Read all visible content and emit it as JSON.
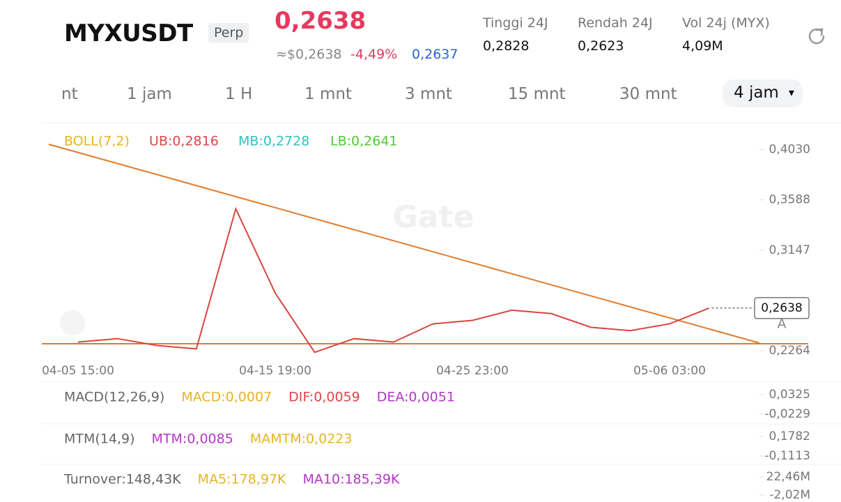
{
  "header": {
    "symbol": "MYXUSDT",
    "badge": "Perp",
    "price": "0,2638",
    "approx_price": "≈$0,2638",
    "change": "-4,49%",
    "mark_price": "0,2637",
    "stats": [
      {
        "label": "Tinggi 24J",
        "value": "0,2828"
      },
      {
        "label": "Rendah 24J",
        "value": "0,2623"
      },
      {
        "label": "Vol 24j (MYX)",
        "value": "4,09M"
      }
    ]
  },
  "tabs": [
    "nt",
    "1 jam",
    "1 H",
    "1 mnt",
    "3 mnt",
    "15 mnt",
    "30 mnt",
    "4 jam"
  ],
  "chart_data": {
    "type": "line",
    "watermark": "Gate",
    "legend": [
      "BOLL(7,2)",
      "UB:0,2816",
      "MB:0,2728",
      "LB:0,2641"
    ],
    "button": "A",
    "categories": [
      "04-05 15:00",
      null,
      null,
      null,
      null,
      "04-15 19:00",
      null,
      null,
      null,
      null,
      "04-25 23:00",
      null,
      null,
      null,
      null,
      "05-06 03:00",
      null
    ],
    "values": [
      0.234,
      0.237,
      0.231,
      0.228,
      0.351,
      0.277,
      0.225,
      0.237,
      0.234,
      0.25,
      0.253,
      0.262,
      0.259,
      0.247,
      0.244,
      0.25,
      0.2638
    ],
    "color": "#d9453f",
    "ylim": [
      0.2209,
      0.418
    ],
    "yticks": [
      {
        "value": 0.2264,
        "label": "0,2264"
      },
      {
        "value": 0.3147,
        "label": "0,3147"
      },
      {
        "value": 0.3588,
        "label": "0,3588"
      },
      {
        "value": 0.403,
        "label": "0,4030"
      }
    ]
  },
  "indicators": [
    {
      "labels": [
        {
          "text": "MACD(12,26,9)",
          "color": "#666666"
        },
        {
          "text": "MACD:0,0007",
          "color": "#e6b422"
        },
        {
          "text": "DIF:0,0059",
          "color": "#e0464b"
        },
        {
          "text": "DEA:0,0051",
          "color": "#b536c9"
        }
      ],
      "ylim": [
        -0.035,
        0.052
      ],
      "yticks": [
        {
          "value": -0.0229,
          "label": "-0,0229"
        },
        {
          "value": 0.0325,
          "label": "0,0325"
        }
      ]
    },
    {
      "labels": [
        {
          "text": "MTM(14,9)",
          "color": "#666666"
        },
        {
          "text": "MTM:0,0085",
          "color": "#b536c9"
        },
        {
          "text": "MAMTM:0,0223",
          "color": "#e6b422"
        }
      ],
      "ylim": [
        -0.173,
        0.282
      ],
      "yticks": [
        {
          "value": -0.1113,
          "label": "-0,1113"
        },
        {
          "value": 0.1782,
          "label": "0,1782"
        }
      ]
    },
    {
      "labels": [
        {
          "text": "Turnover:148,43K",
          "color": "#666666"
        },
        {
          "text": "MA5:178,97K",
          "color": "#e6b422"
        },
        {
          "text": "MA10:185,39K",
          "color": "#b536c9"
        }
      ],
      "ylim": [
        -7670000,
        31900000
      ],
      "yticks": [
        {
          "value": -2020000,
          "label": "-2,02M"
        },
        {
          "value": 22460000,
          "label": "22,46M"
        }
      ]
    }
  ]
}
